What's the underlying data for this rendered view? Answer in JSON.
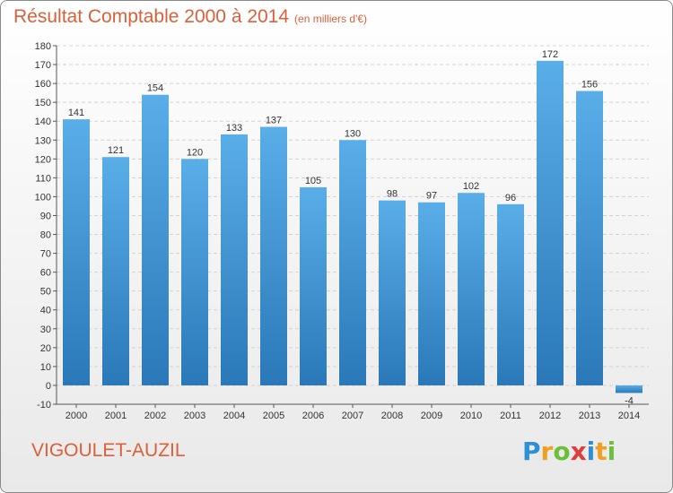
{
  "title": "Résultat Comptable 2000 à 2014",
  "subtitle": "(en milliers d'€)",
  "place": "VIGOULET-AUZIL",
  "logo": {
    "letters": [
      "P",
      "r",
      "o",
      "x",
      "i",
      "t",
      "i"
    ],
    "colors": [
      "#2e8fd6",
      "#f0a020",
      "#6cbf3a",
      "#e03c3c",
      "#2e8fd6",
      "#f0a020",
      "#6cbf3a"
    ]
  },
  "colors": {
    "bar_top": "#5aaee8",
    "bar_bottom": "#2a78b8",
    "title": "#d9603a",
    "grid": "#d2d2d2"
  },
  "chart_data": {
    "type": "bar",
    "title": "Résultat Comptable 2000 à 2014",
    "subtitle": "(en milliers d'€)",
    "categories": [
      "2000",
      "2001",
      "2002",
      "2003",
      "2004",
      "2005",
      "2006",
      "2007",
      "2008",
      "2009",
      "2010",
      "2011",
      "2012",
      "2013",
      "2014"
    ],
    "values": [
      141,
      121,
      154,
      120,
      133,
      137,
      105,
      130,
      98,
      97,
      102,
      96,
      172,
      156,
      -4
    ],
    "ylim": [
      -10,
      180
    ],
    "yticks": [
      -10,
      0,
      10,
      20,
      30,
      40,
      50,
      60,
      70,
      80,
      90,
      100,
      110,
      120,
      130,
      140,
      150,
      160,
      170,
      180
    ],
    "grid": true,
    "legend": "none"
  }
}
